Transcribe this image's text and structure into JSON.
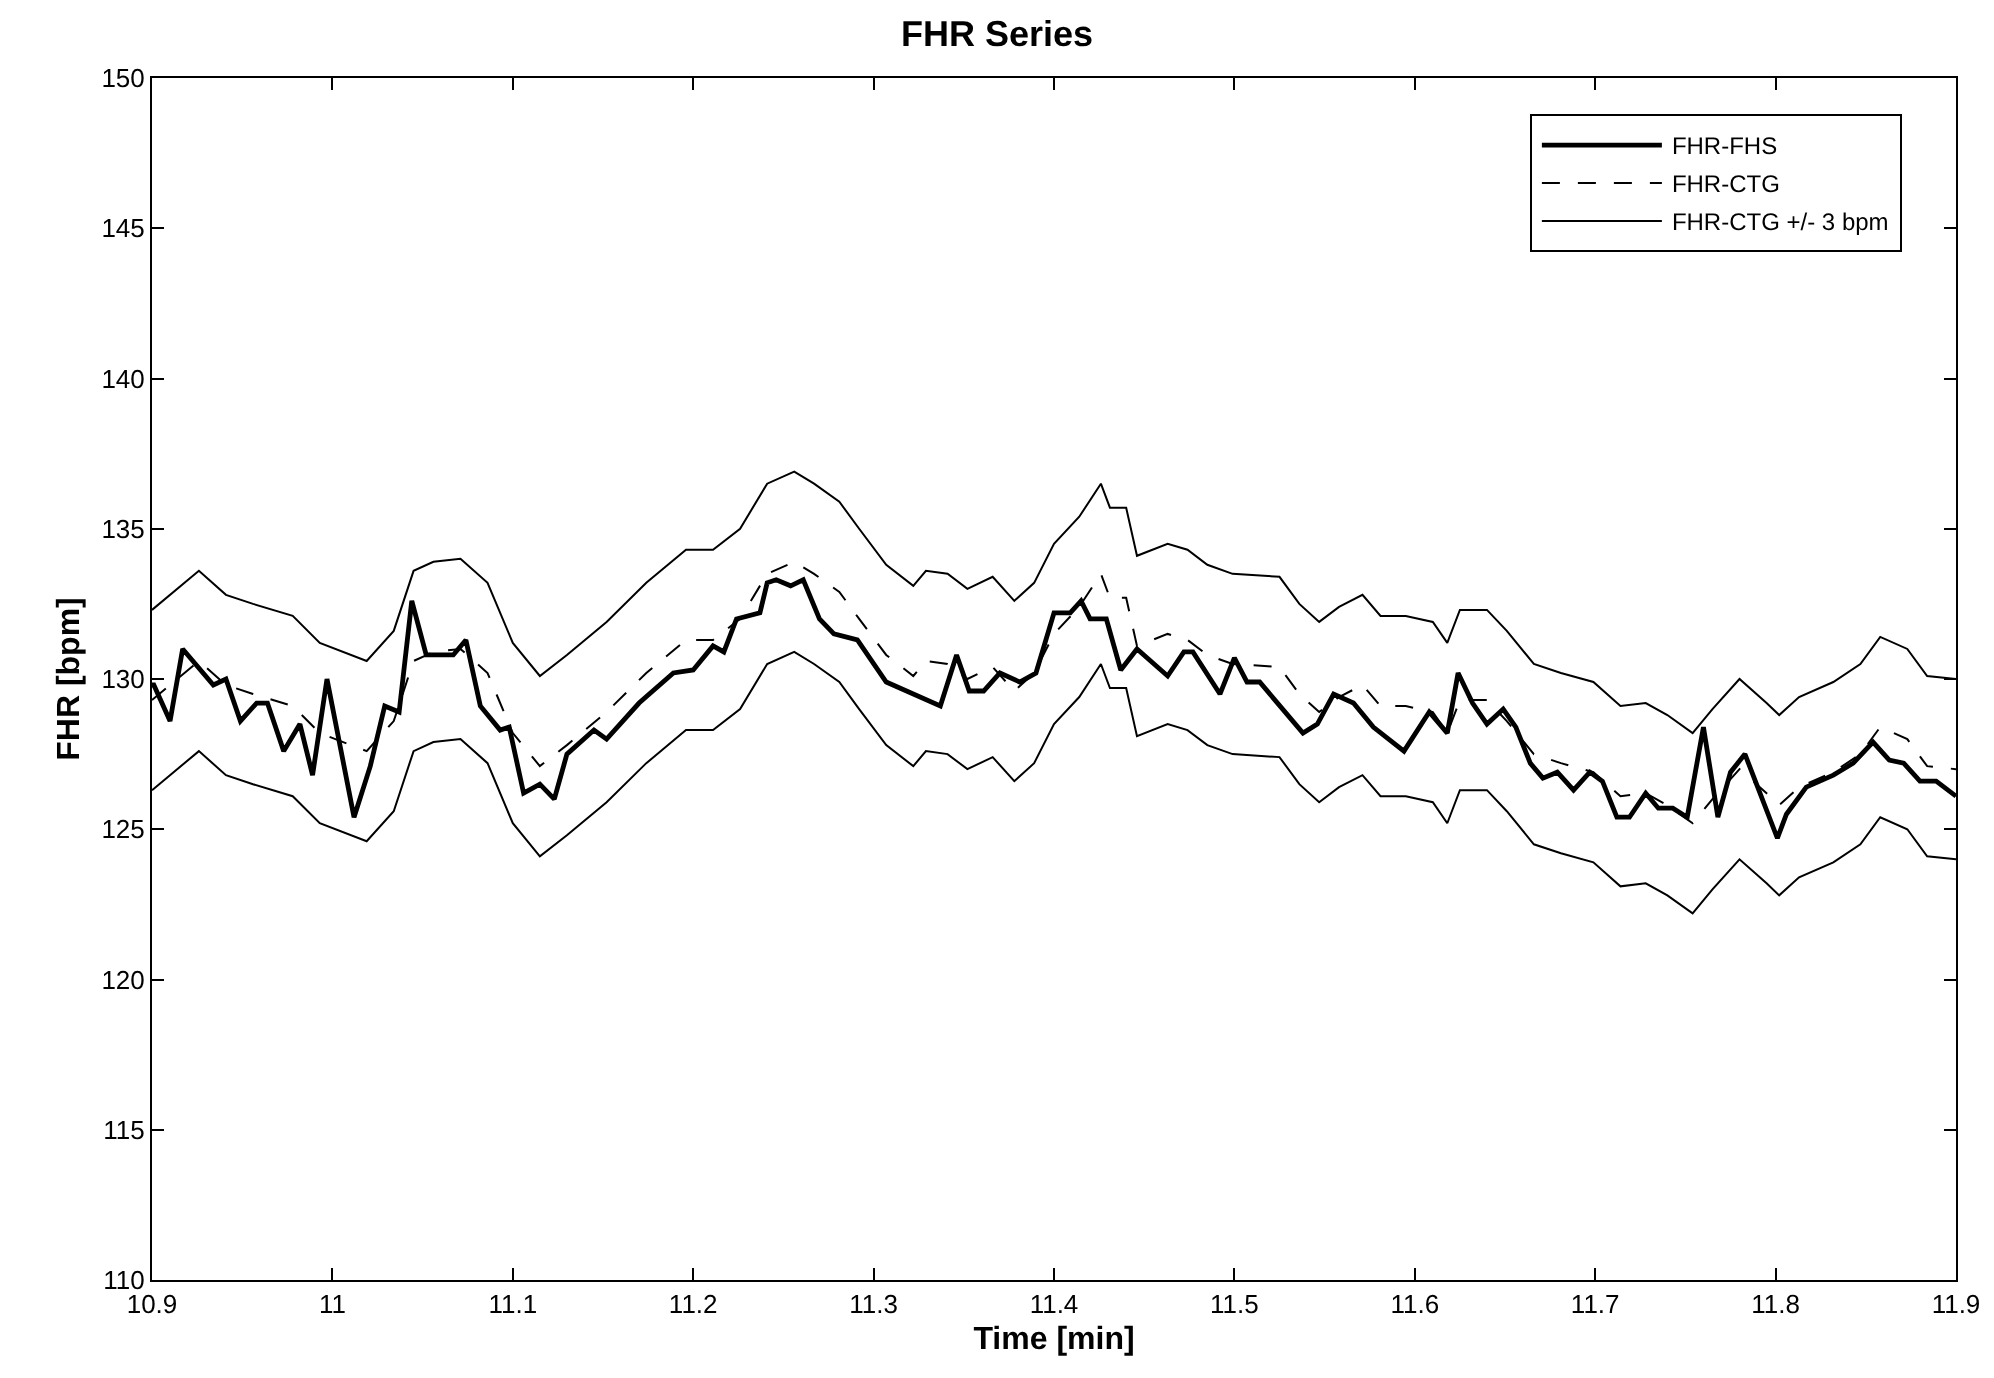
{
  "chart_data": {
    "type": "line",
    "title": "FHR Series",
    "xlabel": "Time [min]",
    "ylabel": "FHR [bpm]",
    "xlim": [
      10.9,
      11.9
    ],
    "xticks": [
      10.9,
      11,
      11.1,
      11.2,
      11.3,
      11.4,
      11.5,
      11.6,
      11.7,
      11.8,
      11.9
    ],
    "ylim": [
      110,
      150
    ],
    "yticks": [
      110,
      115,
      120,
      125,
      130,
      135,
      140,
      145,
      150
    ],
    "grid": false,
    "legend": "top right",
    "marker": "none",
    "series": [
      {
        "name": "FHR-FHS",
        "color": "#000000",
        "line_style": "solid",
        "x": [
          10.9,
          10.901,
          10.91,
          10.917,
          10.934,
          10.941,
          10.949,
          10.958,
          10.964,
          10.973,
          10.982,
          10.989,
          10.997,
          11.012,
          11.021,
          11.029,
          11.037,
          11.044,
          11.052,
          11.067,
          11.074,
          11.082,
          11.093,
          11.098,
          11.106,
          11.115,
          11.123,
          11.13,
          11.145,
          11.152,
          11.17,
          11.189,
          11.2,
          11.211,
          11.217,
          11.224,
          11.237,
          11.241,
          11.246,
          11.254,
          11.261,
          11.27,
          11.278,
          11.291,
          11.307,
          11.337,
          11.346,
          11.353,
          11.361,
          11.37,
          11.381,
          11.39,
          11.4,
          11.409,
          11.415,
          11.42,
          11.429,
          11.437,
          11.446,
          11.463,
          11.472,
          11.477,
          11.492,
          11.5,
          11.507,
          11.514,
          11.538,
          11.546,
          11.555,
          11.566,
          11.577,
          11.594,
          11.608,
          11.618,
          11.624,
          11.632,
          11.64,
          11.649,
          11.656,
          11.664,
          11.671,
          11.679,
          11.688,
          11.697,
          11.704,
          11.712,
          11.719,
          11.728,
          11.735,
          11.743,
          11.751,
          11.76,
          11.768,
          11.775,
          11.783,
          11.801,
          11.806,
          11.817,
          11.832,
          11.843,
          11.854,
          11.863,
          11.871,
          11.88,
          11.889,
          11.9
        ],
        "values": [
          129.8,
          129.8,
          128.6,
          131.0,
          129.8,
          130.0,
          128.6,
          129.2,
          129.2,
          127.6,
          128.5,
          126.8,
          130.0,
          125.4,
          127.1,
          129.1,
          128.9,
          132.6,
          130.8,
          130.8,
          131.3,
          129.1,
          128.3,
          128.4,
          126.2,
          126.5,
          126.0,
          127.5,
          128.3,
          128.0,
          129.2,
          130.2,
          130.3,
          131.1,
          130.9,
          132.0,
          132.2,
          133.2,
          133.3,
          133.1,
          133.3,
          132.0,
          131.5,
          131.3,
          129.9,
          129.1,
          130.8,
          129.6,
          129.6,
          130.2,
          129.9,
          130.2,
          132.2,
          132.2,
          132.6,
          132.0,
          132.0,
          130.3,
          131.0,
          130.1,
          130.9,
          130.9,
          129.5,
          130.7,
          129.9,
          129.9,
          128.2,
          128.5,
          129.5,
          129.2,
          128.4,
          127.6,
          128.9,
          128.2,
          130.2,
          129.2,
          128.5,
          129.0,
          128.4,
          127.2,
          126.7,
          126.9,
          126.3,
          126.9,
          126.6,
          125.4,
          125.4,
          126.2,
          125.7,
          125.7,
          125.4,
          128.4,
          125.4,
          126.9,
          127.5,
          124.7,
          125.5,
          126.4,
          126.8,
          127.2,
          127.9,
          127.3,
          127.2,
          126.6,
          126.6,
          126.1
        ]
      },
      {
        "name": "FHR-CTG",
        "color": "#000000",
        "line_style": "dashed",
        "x": [
          10.9,
          10.926,
          10.941,
          10.956,
          10.978,
          10.993,
          11.019,
          11.034,
          11.045,
          11.056,
          11.071,
          11.086,
          11.1,
          11.115,
          11.13,
          11.152,
          11.174,
          11.196,
          11.211,
          11.226,
          11.241,
          11.256,
          11.267,
          11.281,
          11.292,
          11.307,
          11.322,
          11.329,
          11.341,
          11.352,
          11.366,
          11.378,
          11.389,
          11.4,
          11.414,
          11.426,
          11.431,
          11.44,
          11.446,
          11.463,
          11.474,
          11.485,
          11.499,
          11.525,
          11.536,
          11.547,
          11.558,
          11.571,
          11.581,
          11.595,
          11.61,
          11.618,
          11.625,
          11.64,
          11.651,
          11.666,
          11.681,
          11.699,
          11.714,
          11.728,
          11.74,
          11.754,
          11.765,
          11.78,
          11.795,
          11.802,
          11.813,
          11.832,
          11.847,
          11.858,
          11.873,
          11.884,
          11.9
        ],
        "values": [
          129.3,
          130.6,
          129.8,
          129.5,
          129.1,
          128.2,
          127.6,
          128.6,
          130.6,
          130.9,
          131.0,
          130.2,
          128.2,
          127.1,
          127.8,
          128.9,
          130.2,
          131.3,
          131.3,
          132.0,
          133.5,
          133.9,
          133.5,
          132.9,
          132.0,
          130.8,
          130.1,
          130.6,
          130.5,
          130.0,
          130.4,
          129.6,
          130.2,
          131.5,
          132.4,
          133.5,
          132.7,
          132.7,
          131.1,
          131.5,
          131.3,
          130.8,
          130.5,
          130.4,
          129.5,
          128.9,
          129.4,
          129.8,
          129.1,
          129.1,
          128.9,
          128.2,
          129.3,
          129.3,
          128.6,
          127.5,
          127.2,
          126.9,
          126.1,
          126.2,
          125.8,
          125.2,
          126.0,
          127.0,
          126.2,
          125.8,
          126.4,
          126.9,
          127.5,
          128.4,
          128.0,
          127.1,
          127.0
        ]
      },
      {
        "name": "FHR-CTG +/- 3 bpm",
        "color": "#000000",
        "line_style": "solid",
        "x": [
          10.9,
          10.926,
          10.941,
          10.956,
          10.978,
          10.993,
          11.019,
          11.034,
          11.045,
          11.056,
          11.071,
          11.086,
          11.1,
          11.115,
          11.13,
          11.152,
          11.174,
          11.196,
          11.211,
          11.226,
          11.241,
          11.256,
          11.267,
          11.281,
          11.292,
          11.307,
          11.322,
          11.329,
          11.341,
          11.352,
          11.366,
          11.378,
          11.389,
          11.4,
          11.414,
          11.426,
          11.431,
          11.44,
          11.446,
          11.463,
          11.474,
          11.485,
          11.499,
          11.525,
          11.536,
          11.547,
          11.558,
          11.571,
          11.581,
          11.595,
          11.61,
          11.618,
          11.625,
          11.64,
          11.651,
          11.666,
          11.681,
          11.699,
          11.714,
          11.728,
          11.74,
          11.754,
          11.765,
          11.78,
          11.795,
          11.802,
          11.813,
          11.832,
          11.847,
          11.858,
          11.873,
          11.884,
          11.9
        ],
        "values": [
          132.3,
          133.6,
          132.8,
          132.5,
          132.1,
          131.2,
          130.6,
          131.6,
          133.6,
          133.9,
          134.0,
          133.2,
          131.2,
          130.1,
          130.8,
          131.9,
          133.2,
          134.3,
          134.3,
          135.0,
          136.5,
          136.9,
          136.5,
          135.9,
          135.0,
          133.8,
          133.1,
          133.6,
          133.5,
          133.0,
          133.4,
          132.6,
          133.2,
          134.5,
          135.4,
          136.5,
          135.7,
          135.7,
          134.1,
          134.5,
          134.3,
          133.8,
          133.5,
          133.4,
          132.5,
          131.9,
          132.4,
          132.8,
          132.1,
          132.1,
          131.9,
          131.2,
          132.3,
          132.3,
          131.6,
          130.5,
          130.2,
          129.9,
          129.1,
          129.2,
          128.8,
          128.2,
          129.0,
          130.0,
          129.2,
          128.8,
          129.4,
          129.9,
          130.5,
          131.4,
          131.0,
          130.1,
          130.0
        ]
      },
      {
        "color": "#000000",
        "line_style": "solid",
        "x": [
          10.9,
          10.926,
          10.941,
          10.956,
          10.978,
          10.993,
          11.019,
          11.034,
          11.045,
          11.056,
          11.071,
          11.086,
          11.1,
          11.115,
          11.13,
          11.152,
          11.174,
          11.196,
          11.211,
          11.226,
          11.241,
          11.256,
          11.267,
          11.281,
          11.292,
          11.307,
          11.322,
          11.329,
          11.341,
          11.352,
          11.366,
          11.378,
          11.389,
          11.4,
          11.414,
          11.426,
          11.431,
          11.44,
          11.446,
          11.463,
          11.474,
          11.485,
          11.499,
          11.525,
          11.536,
          11.547,
          11.558,
          11.571,
          11.581,
          11.595,
          11.61,
          11.618,
          11.625,
          11.64,
          11.651,
          11.666,
          11.681,
          11.699,
          11.714,
          11.728,
          11.74,
          11.754,
          11.765,
          11.78,
          11.795,
          11.802,
          11.813,
          11.832,
          11.847,
          11.858,
          11.873,
          11.884,
          11.9
        ],
        "values": [
          126.3,
          127.6,
          126.8,
          126.5,
          126.1,
          125.2,
          124.6,
          125.6,
          127.6,
          127.9,
          128.0,
          127.2,
          125.2,
          124.1,
          124.8,
          125.9,
          127.2,
          128.3,
          128.3,
          129.0,
          130.5,
          130.9,
          130.5,
          129.9,
          129.0,
          127.8,
          127.1,
          127.6,
          127.5,
          127.0,
          127.4,
          126.6,
          127.2,
          128.5,
          129.4,
          130.5,
          129.7,
          129.7,
          128.1,
          128.5,
          128.3,
          127.8,
          127.5,
          127.4,
          126.5,
          125.9,
          126.4,
          126.8,
          126.1,
          126.1,
          125.9,
          125.2,
          126.3,
          126.3,
          125.6,
          124.5,
          124.2,
          123.9,
          123.1,
          123.2,
          122.8,
          122.2,
          123.0,
          124.0,
          123.2,
          122.8,
          123.4,
          123.9,
          124.5,
          125.4,
          125.0,
          124.1,
          124.0
        ]
      }
    ]
  }
}
